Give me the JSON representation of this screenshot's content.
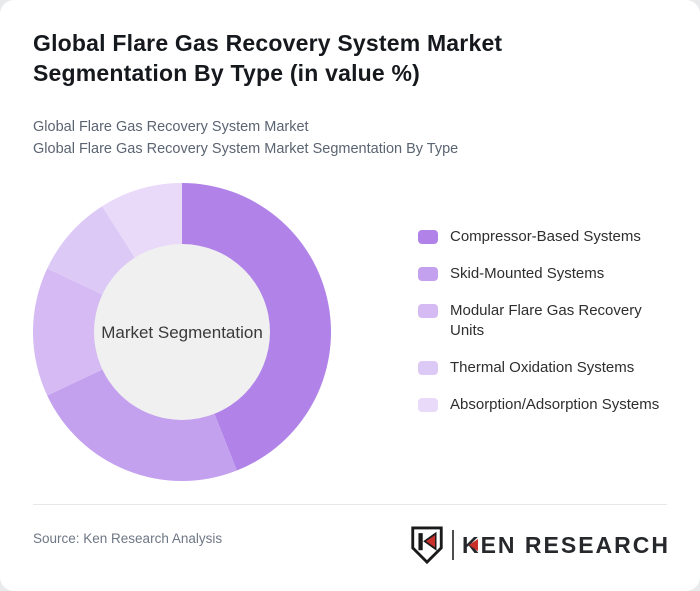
{
  "header": {
    "title_line1": "Global Flare Gas Recovery System Market",
    "title_line2": "Segmentation By Type (in value %)",
    "subtitle1": "Global Flare Gas Recovery System Market",
    "subtitle2": "Global Flare Gas Recovery System Market Segmentation By Type"
  },
  "chart_data": {
    "type": "pie",
    "variant": "donut",
    "title": "Global Flare Gas Recovery System Market Segmentation By Type (in value %)",
    "center_label": "Market Segmentation",
    "value_unit": "% of market value",
    "values_shown_on_chart": false,
    "values_are_estimates_from_arc_angles": true,
    "start_angle_deg_from_top": 0,
    "direction": "clockwise",
    "inner_radius_ratio": 0.59,
    "inner_circle_color": "#f0f0f0",
    "legend_position": "right",
    "segments": [
      {
        "label": "Compressor-Based Systems",
        "value": 44,
        "color": "#b183e9"
      },
      {
        "label": "Skid-Mounted Systems",
        "value": 24,
        "color": "#c4a1ef"
      },
      {
        "label": "Modular Flare Gas Recovery Units",
        "value": 14,
        "color": "#d5baf3"
      },
      {
        "label": "Thermal Oxidation Systems",
        "value": 9,
        "color": "#ddc9f6"
      },
      {
        "label": "Absorption/Adsorption Systems",
        "value": 9,
        "color": "#e9dafa"
      }
    ]
  },
  "footer": {
    "source": "Source: Ken Research Analysis",
    "brand_name": "KEN RESEARCH"
  },
  "theme": {
    "page_bg": "#e9eaec",
    "card_bg": "#ffffff",
    "title_color": "#15181c",
    "subtitle_color": "#5b6472",
    "legend_text_color": "#2e2e2e",
    "divider_color": "#e7e7e7",
    "source_color": "#6e7786",
    "brand_text_color": "#26282b",
    "brand_accent_red": "#c9302c"
  }
}
